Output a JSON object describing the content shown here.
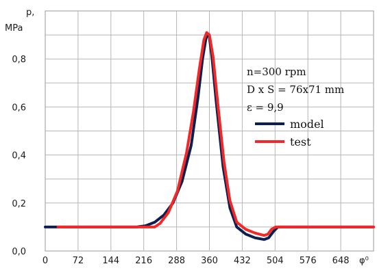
{
  "chart_data": {
    "type": "line",
    "xlabel": "φ⁰",
    "ylabel_line1": "p,",
    "ylabel_line2": "MPa",
    "xlim": [
      0,
      720
    ],
    "ylim": [
      0,
      1.0
    ],
    "x_ticks": [
      0,
      72,
      144,
      216,
      288,
      360,
      432,
      504,
      576,
      648
    ],
    "x_tick_labels": [
      "0",
      "72",
      "144",
      "216",
      "288",
      "360",
      "432",
      "504",
      "576",
      "648"
    ],
    "y_ticks": [
      0,
      0.2,
      0.4,
      0.6,
      0.8
    ],
    "y_tick_labels": [
      "0,0",
      "0,2",
      "0,4",
      "0,6",
      "0,8"
    ],
    "grid": true,
    "annotations": [
      "n=300 rpm",
      "D x S = 76x71 mm",
      "ε = 9,9"
    ],
    "legend_placement": "right",
    "series": [
      {
        "name": "model",
        "color": "#0d1f4f",
        "points": [
          [
            0,
            0.1
          ],
          [
            200,
            0.1
          ],
          [
            220,
            0.105
          ],
          [
            240,
            0.12
          ],
          [
            260,
            0.15
          ],
          [
            280,
            0.2
          ],
          [
            300,
            0.29
          ],
          [
            320,
            0.44
          ],
          [
            335,
            0.64
          ],
          [
            345,
            0.8
          ],
          [
            352,
            0.88
          ],
          [
            356,
            0.905
          ],
          [
            360,
            0.89
          ],
          [
            366,
            0.8
          ],
          [
            375,
            0.62
          ],
          [
            390,
            0.35
          ],
          [
            405,
            0.18
          ],
          [
            420,
            0.1
          ],
          [
            440,
            0.07
          ],
          [
            460,
            0.055
          ],
          [
            480,
            0.048
          ],
          [
            490,
            0.055
          ],
          [
            500,
            0.08
          ],
          [
            510,
            0.1
          ],
          [
            720,
            0.1
          ]
        ]
      },
      {
        "name": "test",
        "color": "#f02828",
        "points": [
          [
            28,
            0.1
          ],
          [
            240,
            0.1
          ],
          [
            252,
            0.115
          ],
          [
            270,
            0.16
          ],
          [
            290,
            0.25
          ],
          [
            310,
            0.41
          ],
          [
            325,
            0.58
          ],
          [
            338,
            0.76
          ],
          [
            348,
            0.88
          ],
          [
            354,
            0.91
          ],
          [
            360,
            0.9
          ],
          [
            368,
            0.81
          ],
          [
            378,
            0.62
          ],
          [
            392,
            0.37
          ],
          [
            405,
            0.21
          ],
          [
            420,
            0.12
          ],
          [
            440,
            0.09
          ],
          [
            460,
            0.075
          ],
          [
            480,
            0.065
          ],
          [
            488,
            0.07
          ],
          [
            496,
            0.09
          ],
          [
            505,
            0.1
          ],
          [
            720,
            0.1
          ]
        ]
      }
    ]
  }
}
